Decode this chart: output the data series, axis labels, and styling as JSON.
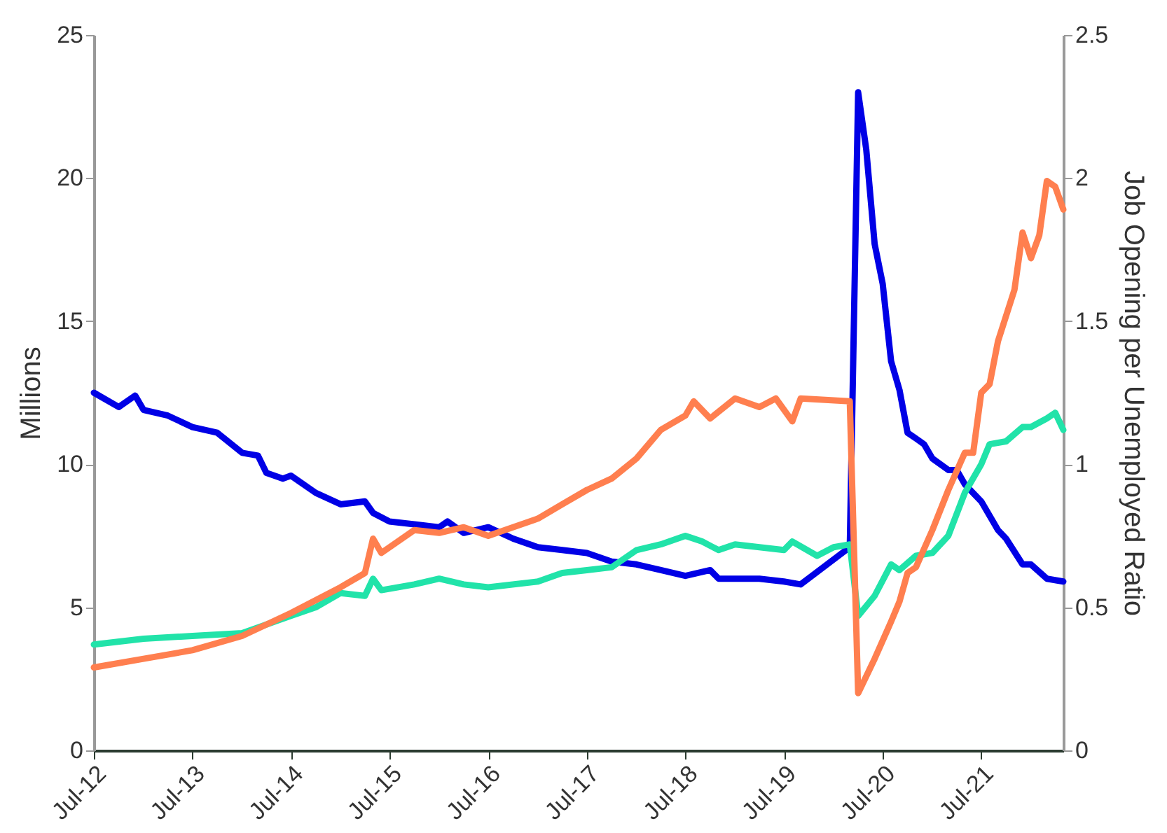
{
  "chart_data": {
    "type": "line",
    "ylabel": "Millions",
    "y2label": "Job Opening per Unemployed Ratio",
    "xlim": [
      "2012-07",
      "2022-05"
    ],
    "xticks": [
      {
        "value": "2012-07",
        "label": "Jul-12"
      },
      {
        "value": "2013-07",
        "label": "Jul-13"
      },
      {
        "value": "2014-07",
        "label": "Jul-14"
      },
      {
        "value": "2015-07",
        "label": "Jul-15"
      },
      {
        "value": "2016-07",
        "label": "Jul-16"
      },
      {
        "value": "2017-07",
        "label": "Jul-17"
      },
      {
        "value": "2018-07",
        "label": "Jul-18"
      },
      {
        "value": "2019-07",
        "label": "Jul-19"
      },
      {
        "value": "2020-07",
        "label": "Jul-20"
      },
      {
        "value": "2021-07",
        "label": "Jul-21"
      }
    ],
    "ylim": [
      0,
      25
    ],
    "yticks": [
      0,
      5,
      10,
      15,
      20,
      25
    ],
    "y2lim": [
      0,
      2.5
    ],
    "y2ticks": [
      0,
      0.5,
      1,
      1.5,
      2,
      2.5
    ],
    "grid": false,
    "legend": false,
    "line_style": "solid",
    "marker": "none",
    "series": [
      {
        "color": "#0000e6",
        "x": [
          "2012-07",
          "2012-10",
          "2012-12",
          "2013-01",
          "2013-04",
          "2013-07",
          "2013-10",
          "2014-01",
          "2014-03",
          "2014-04",
          "2014-06",
          "2014-07",
          "2014-10",
          "2015-01",
          "2015-04",
          "2015-05",
          "2015-07",
          "2015-10",
          "2016-01",
          "2016-02",
          "2016-04",
          "2016-07",
          "2016-10",
          "2017-01",
          "2017-04",
          "2017-07",
          "2017-10",
          "2018-01",
          "2018-04",
          "2018-07",
          "2018-10",
          "2018-11",
          "2019-01",
          "2019-04",
          "2019-07",
          "2019-09",
          "2020-03",
          "2020-04",
          "2020-05",
          "2020-06",
          "2020-07",
          "2020-08",
          "2020-09",
          "2020-10",
          "2020-11",
          "2020-12",
          "2021-01",
          "2021-03",
          "2021-04",
          "2021-05",
          "2021-07",
          "2021-09",
          "2021-10",
          "2021-12",
          "2022-01",
          "2022-03",
          "2022-05"
        ],
        "values": [
          12.5,
          12.0,
          12.4,
          11.9,
          11.7,
          11.3,
          11.1,
          10.4,
          10.3,
          9.7,
          9.5,
          9.6,
          9.0,
          8.6,
          8.7,
          8.3,
          8.0,
          7.9,
          7.8,
          8.0,
          7.6,
          7.8,
          7.4,
          7.1,
          7.0,
          6.9,
          6.6,
          6.5,
          6.3,
          6.1,
          6.3,
          6.0,
          6.0,
          6.0,
          5.9,
          5.8,
          7.1,
          23.0,
          21.0,
          17.7,
          16.3,
          13.6,
          12.6,
          11.1,
          10.9,
          10.7,
          10.2,
          9.8,
          9.8,
          9.3,
          8.7,
          7.7,
          7.4,
          6.5,
          6.5,
          6.0,
          5.9
        ]
      },
      {
        "color": "#21e3a9",
        "x": [
          "2012-07",
          "2013-01",
          "2013-07",
          "2014-01",
          "2014-07",
          "2014-10",
          "2015-01",
          "2015-04",
          "2015-05",
          "2015-06",
          "2015-10",
          "2016-01",
          "2016-04",
          "2016-07",
          "2017-01",
          "2017-04",
          "2017-07",
          "2017-10",
          "2018-01",
          "2018-04",
          "2018-07",
          "2018-09",
          "2018-11",
          "2019-01",
          "2019-07",
          "2019-08",
          "2019-11",
          "2020-01",
          "2020-03",
          "2020-04",
          "2020-06",
          "2020-08",
          "2020-09",
          "2020-11",
          "2021-01",
          "2021-03",
          "2021-05",
          "2021-07",
          "2021-08",
          "2021-10",
          "2021-12",
          "2022-01",
          "2022-03",
          "2022-04",
          "2022-05"
        ],
        "values": [
          3.7,
          3.9,
          4.0,
          4.1,
          4.7,
          5.0,
          5.5,
          5.4,
          6.0,
          5.6,
          5.8,
          6.0,
          5.8,
          5.7,
          5.9,
          6.2,
          6.3,
          6.4,
          7.0,
          7.2,
          7.5,
          7.3,
          7.0,
          7.2,
          7.0,
          7.3,
          6.8,
          7.1,
          7.2,
          4.7,
          5.4,
          6.5,
          6.3,
          6.8,
          6.9,
          7.5,
          9.0,
          10.0,
          10.7,
          10.8,
          11.3,
          11.3,
          11.6,
          11.8,
          11.2
        ]
      },
      {
        "color": "#ff7f4f",
        "axis": "y2",
        "x": [
          "2012-07",
          "2013-01",
          "2013-07",
          "2014-01",
          "2014-07",
          "2015-01",
          "2015-04",
          "2015-05",
          "2015-06",
          "2015-10",
          "2016-01",
          "2016-04",
          "2016-07",
          "2017-01",
          "2017-04",
          "2017-07",
          "2017-10",
          "2018-01",
          "2018-04",
          "2018-07",
          "2018-08",
          "2018-10",
          "2019-01",
          "2019-04",
          "2019-06",
          "2019-08",
          "2019-09",
          "2020-03",
          "2020-04",
          "2020-06",
          "2020-08",
          "2020-09",
          "2020-10",
          "2020-11",
          "2021-01",
          "2021-03",
          "2021-05",
          "2021-06",
          "2021-07",
          "2021-08",
          "2021-09",
          "2021-11",
          "2021-12",
          "2022-01",
          "2022-02",
          "2022-03",
          "2022-04",
          "2022-05"
        ],
        "values": [
          0.29,
          0.32,
          0.35,
          0.4,
          0.48,
          0.57,
          0.62,
          0.74,
          0.69,
          0.77,
          0.76,
          0.78,
          0.75,
          0.81,
          0.86,
          0.91,
          0.95,
          1.02,
          1.12,
          1.17,
          1.22,
          1.16,
          1.23,
          1.2,
          1.23,
          1.15,
          1.23,
          1.22,
          0.2,
          0.32,
          0.45,
          0.52,
          0.62,
          0.64,
          0.77,
          0.91,
          1.04,
          1.04,
          1.25,
          1.28,
          1.43,
          1.61,
          1.81,
          1.72,
          1.8,
          1.99,
          1.97,
          1.89
        ]
      }
    ]
  }
}
